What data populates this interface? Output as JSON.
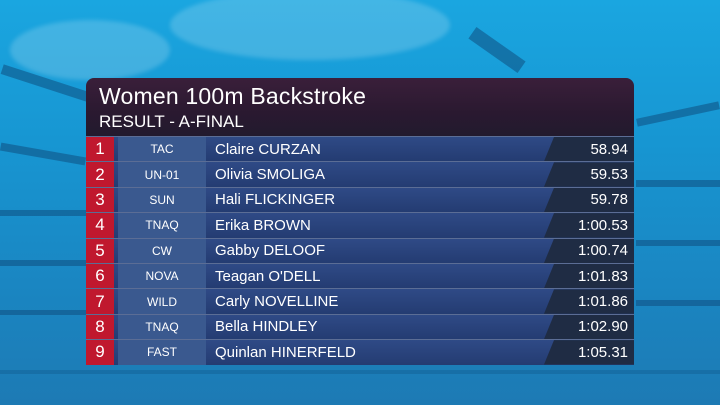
{
  "event": {
    "title": "Women 100m Backstroke",
    "subtitle": "RESULT - A-FINAL"
  },
  "colors": {
    "place_badge": "#c0182e",
    "header_bg": "#2a1930",
    "row_bg": "#2f4a86",
    "team_bg": "#3a598f",
    "time_bg": "#1f2c44"
  },
  "results": [
    {
      "place": "1",
      "team": "TAC",
      "name": "Claire CURZAN",
      "time": "58.94"
    },
    {
      "place": "2",
      "team": "UN-01",
      "name": "Olivia SMOLIGA",
      "time": "59.53"
    },
    {
      "place": "3",
      "team": "SUN",
      "name": "Hali FLICKINGER",
      "time": "59.78"
    },
    {
      "place": "4",
      "team": "TNAQ",
      "name": "Erika BROWN",
      "time": "1:00.53"
    },
    {
      "place": "5",
      "team": "CW",
      "name": "Gabby DELOOF",
      "time": "1:00.74"
    },
    {
      "place": "6",
      "team": "NOVA",
      "name": "Teagan O'DELL",
      "time": "1:01.83"
    },
    {
      "place": "7",
      "team": "WILD",
      "name": "Carly NOVELLINE",
      "time": "1:01.86"
    },
    {
      "place": "8",
      "team": "TNAQ",
      "name": "Bella HINDLEY",
      "time": "1:02.90"
    },
    {
      "place": "9",
      "team": "FAST",
      "name": "Quinlan HINERFELD",
      "time": "1:05.31"
    }
  ]
}
